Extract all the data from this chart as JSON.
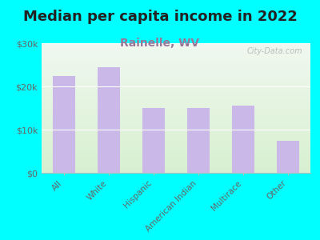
{
  "title": "Median per capita income in 2022",
  "subtitle": "Rainelle, WV",
  "categories": [
    "All",
    "White",
    "Hispanic",
    "American Indian",
    "Multirace",
    "Other"
  ],
  "values": [
    22500,
    24500,
    15000,
    15000,
    15500,
    7500
  ],
  "bar_color": "#c9b8e8",
  "background_color": "#00ffff",
  "plot_bg_top": "#f0f8f0",
  "plot_bg_bottom": "#d8f0d0",
  "ylim": [
    0,
    30000
  ],
  "yticks": [
    0,
    10000,
    20000,
    30000
  ],
  "ytick_labels": [
    "$0",
    "$10k",
    "$20k",
    "$30k"
  ],
  "title_fontsize": 13,
  "subtitle_fontsize": 10,
  "subtitle_color": "#997799",
  "title_color": "#222222",
  "tick_label_color": "#666666",
  "watermark": "City-Data.com",
  "watermark_color": "#aaaaaa"
}
